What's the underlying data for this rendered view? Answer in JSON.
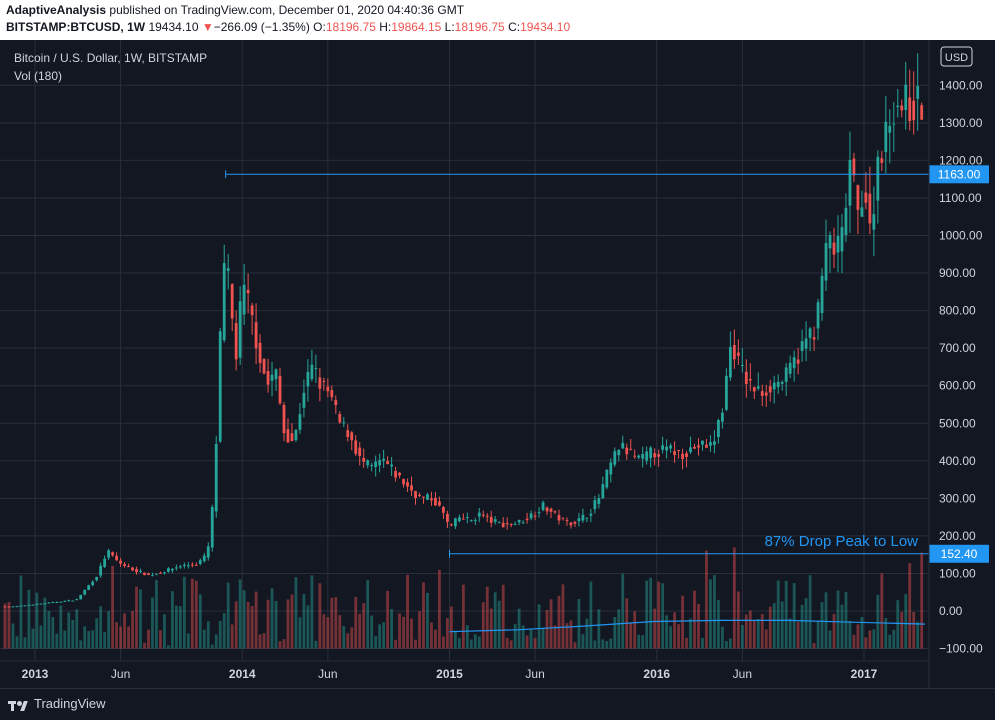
{
  "header": {
    "author": "AdaptiveAnalysis",
    "published": "published on TradingView.com, December 01, 2020 04:40:36 GMT",
    "symbol": "BITSTAMP:BTCUSD, 1W",
    "last": "19434.10",
    "change_arrow": "▼",
    "change": "−266.09 (−1.35%)",
    "o_label": "O:",
    "o_value": "18196.75",
    "h_label": "H:",
    "h_value": "19864.15",
    "l_label": "L:",
    "l_value": "18196.75",
    "c_label": "C:",
    "c_value": "19434.10"
  },
  "legend": {
    "title": "Bitcoin / U.S. Dollar, 1W, BITSTAMP",
    "vol": "Vol (180)"
  },
  "annotation": "87% Drop Peak to Low",
  "footer": {
    "brand": "TradingView"
  },
  "colors": {
    "background": "#131722",
    "up": "#26a69a",
    "down": "#ef5350",
    "line": "#2196f3",
    "grid": "#2a2e39",
    "text": "#d1d4dc"
  },
  "chart_data": {
    "type": "candlestick",
    "currency_label": "USD",
    "ylim": [
      -100,
      1600
    ],
    "yticks": [
      -100,
      0,
      100,
      200,
      300,
      400,
      500,
      600,
      700,
      800,
      900,
      1000,
      1100,
      1200,
      1300,
      1400
    ],
    "ytick_labels": [
      "−100.00",
      "0.00",
      "100.00",
      "200.00",
      "300.00",
      "400.00",
      "500.00",
      "600.00",
      "700.00",
      "800.00",
      "900.00",
      "1000.00",
      "1100.00",
      "1200.00",
      "1300.00",
      "1400.00"
    ],
    "xticks": [
      {
        "label": "2013",
        "t": 0
      },
      {
        "label": "Jun",
        "t": 0.413
      },
      {
        "label": "2014",
        "t": 1.0
      },
      {
        "label": "Jun",
        "t": 1.413
      },
      {
        "label": "2015",
        "t": 2.0
      },
      {
        "label": "Jun",
        "t": 2.413
      },
      {
        "label": "2016",
        "t": 3.0
      },
      {
        "label": "Jun",
        "t": 3.413
      },
      {
        "label": "2017",
        "t": 4.0
      }
    ],
    "horizontal_levels": [
      {
        "value": 1163,
        "label": "1163.00",
        "from_t": 0.92
      },
      {
        "value": 152.4,
        "label": "152.40",
        "from_t": 2.0
      }
    ],
    "price_anchors": [
      [
        -0.1,
        12
      ],
      [
        0.2,
        30
      ],
      [
        0.3,
        95
      ],
      [
        0.35,
        160
      ],
      [
        0.4,
        130
      ],
      [
        0.45,
        115
      ],
      [
        0.55,
        95
      ],
      [
        0.62,
        105
      ],
      [
        0.7,
        120
      ],
      [
        0.78,
        125
      ],
      [
        0.83,
        150
      ],
      [
        0.85,
        220
      ],
      [
        0.88,
        500
      ],
      [
        0.9,
        820
      ],
      [
        0.92,
        950
      ],
      [
        0.95,
        780
      ],
      [
        0.97,
        680
      ],
      [
        1.0,
        860
      ],
      [
        1.03,
        820
      ],
      [
        1.08,
        690
      ],
      [
        1.12,
        600
      ],
      [
        1.16,
        640
      ],
      [
        1.2,
        480
      ],
      [
        1.25,
        450
      ],
      [
        1.3,
        600
      ],
      [
        1.34,
        650
      ],
      [
        1.38,
        600
      ],
      [
        1.42,
        580
      ],
      [
        1.47,
        500
      ],
      [
        1.52,
        470
      ],
      [
        1.57,
        400
      ],
      [
        1.62,
        380
      ],
      [
        1.68,
        400
      ],
      [
        1.73,
        370
      ],
      [
        1.8,
        330
      ],
      [
        1.86,
        300
      ],
      [
        1.92,
        300
      ],
      [
        1.97,
        260
      ],
      [
        2.0,
        220
      ],
      [
        2.05,
        250
      ],
      [
        2.1,
        240
      ],
      [
        2.15,
        260
      ],
      [
        2.2,
        240
      ],
      [
        2.27,
        230
      ],
      [
        2.33,
        235
      ],
      [
        2.38,
        250
      ],
      [
        2.45,
        280
      ],
      [
        2.5,
        260
      ],
      [
        2.56,
        235
      ],
      [
        2.62,
        240
      ],
      [
        2.67,
        260
      ],
      [
        2.72,
        300
      ],
      [
        2.77,
        380
      ],
      [
        2.82,
        440
      ],
      [
        2.87,
        420
      ],
      [
        2.92,
        400
      ],
      [
        2.97,
        420
      ],
      [
        3.05,
        430
      ],
      [
        3.12,
        420
      ],
      [
        3.2,
        440
      ],
      [
        3.27,
        440
      ],
      [
        3.32,
        550
      ],
      [
        3.36,
        720
      ],
      [
        3.4,
        650
      ],
      [
        3.45,
        600
      ],
      [
        3.5,
        580
      ],
      [
        3.55,
        600
      ],
      [
        3.62,
        620
      ],
      [
        3.68,
        680
      ],
      [
        3.73,
        730
      ],
      [
        3.77,
        760
      ],
      [
        3.8,
        900
      ],
      [
        3.83,
        1000
      ],
      [
        3.86,
        950
      ],
      [
        3.9,
        1000
      ],
      [
        3.93,
        1200
      ],
      [
        3.97,
        1050
      ],
      [
        4.0,
        1150
      ],
      [
        4.03,
        1000
      ],
      [
        4.07,
        1220
      ],
      [
        4.11,
        1270
      ],
      [
        4.14,
        1350
      ]
    ],
    "volume": {
      "scale_max": 1600,
      "ma_start_t": 2.0,
      "ma_values": [
        -55,
        -50,
        -40,
        -28,
        -25,
        -25,
        -30,
        -35
      ]
    }
  }
}
